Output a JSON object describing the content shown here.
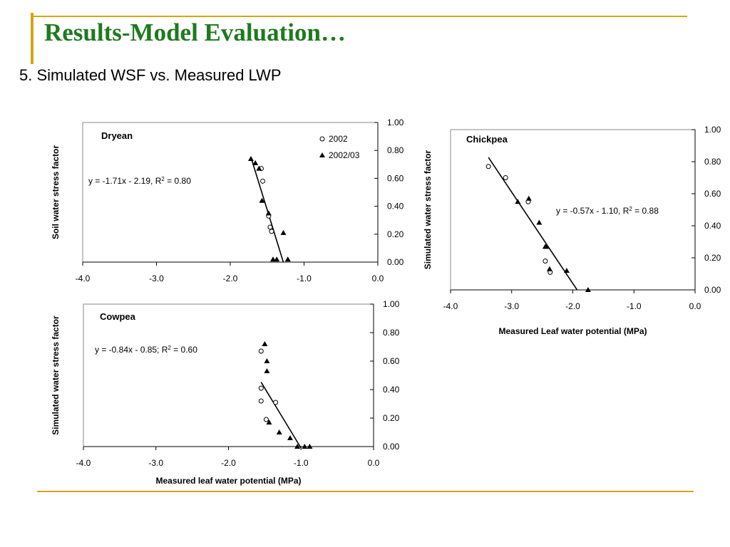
{
  "slide": {
    "title": "Results-Model Evaluation…",
    "subtitle": "5. Simulated WSF vs. Measured LWP"
  },
  "colors": {
    "accent": "#d4a514",
    "title": "#1e7a1e"
  },
  "legend": {
    "open_label": "2002",
    "filled_label": "2002/03"
  },
  "chart_data": [
    {
      "type": "scatter",
      "panel": "Dryean",
      "xlim": [
        -4.0,
        0.0
      ],
      "ylim": [
        0.0,
        1.0
      ],
      "xticks": [
        "-4.0",
        "-3.0",
        "-2.0",
        "-1.0",
        "0.0"
      ],
      "yticks": [
        "0.00",
        "0.20",
        "0.40",
        "0.60",
        "0.80",
        "1.00"
      ],
      "xlabel": "",
      "ylabel": "Soil water stress factor",
      "equation": "y = -1.71x - 2.19, R",
      "eq_sup": "2",
      "eq_tail": " = 0.80",
      "series": [
        {
          "name": "2002",
          "marker": "circle",
          "points": [
            [
              -1.58,
              0.67
            ],
            [
              -1.56,
              0.58
            ],
            [
              -1.48,
              0.33
            ],
            [
              -1.46,
              0.25
            ],
            [
              -1.44,
              0.22
            ]
          ]
        },
        {
          "name": "2002/03",
          "marker": "triangle",
          "points": [
            [
              -1.72,
              0.74
            ],
            [
              -1.66,
              0.71
            ],
            [
              -1.61,
              0.67
            ],
            [
              -1.57,
              0.44
            ],
            [
              -1.48,
              0.35
            ],
            [
              -1.42,
              0.02
            ],
            [
              -1.37,
              0.02
            ],
            [
              -1.28,
              0.21
            ],
            [
              -1.22,
              0.02
            ]
          ]
        }
      ],
      "fit": {
        "x": [
          -1.72,
          -1.28
        ]
      }
    },
    {
      "type": "scatter",
      "panel": "Cowpea",
      "xlim": [
        -4.0,
        0.0
      ],
      "ylim": [
        0.0,
        1.0
      ],
      "xticks": [
        "-4.0",
        "-3.0",
        "-2.0",
        "-1.0",
        "0.0"
      ],
      "yticks": [
        "0.00",
        "0.20",
        "0.40",
        "0.60",
        "0.80",
        "1.00"
      ],
      "xlabel": "Measured leaf water potential (MPa)",
      "ylabel": "Simulated water stress factor",
      "equation": "y = -0.84x - 0.85; R",
      "eq_sup": "2",
      "eq_tail": " = 0.60",
      "series": [
        {
          "name": "2002",
          "marker": "circle",
          "points": [
            [
              -1.55,
              0.67
            ],
            [
              -1.55,
              0.41
            ],
            [
              -1.55,
              0.32
            ],
            [
              -1.48,
              0.19
            ],
            [
              -1.35,
              0.31
            ]
          ]
        },
        {
          "name": "2002/03",
          "marker": "triangle",
          "points": [
            [
              -1.5,
              0.72
            ],
            [
              -1.47,
              0.6
            ],
            [
              -1.47,
              0.53
            ],
            [
              -1.44,
              0.17
            ],
            [
              -1.3,
              0.1
            ],
            [
              -1.15,
              0.06
            ],
            [
              -1.05,
              0.0
            ],
            [
              -0.95,
              0.0
            ],
            [
              -0.88,
              0.0
            ]
          ]
        }
      ],
      "fit": {
        "x": [
          -1.55,
          -1.0
        ]
      }
    },
    {
      "type": "scatter",
      "panel": "Chickpea",
      "xlim": [
        -4.0,
        0.0
      ],
      "ylim": [
        0.0,
        1.0
      ],
      "xticks": [
        "-4.0",
        "-3.0",
        "-2.0",
        "-1.0",
        "0.0"
      ],
      "yticks": [
        "0.00",
        "0.20",
        "0.40",
        "0.60",
        "0.80",
        "1.00"
      ],
      "xlabel": "Measured Leaf water potential (MPa)",
      "ylabel": "Simulated water stress factor",
      "equation": "y = -0.57x - 1.10, R",
      "eq_sup": "2",
      "eq_tail": " = 0.88",
      "series": [
        {
          "name": "2002",
          "marker": "circle",
          "points": [
            [
              -3.38,
              0.77
            ],
            [
              -3.1,
              0.7
            ],
            [
              -2.73,
              0.55
            ],
            [
              -2.45,
              0.18
            ],
            [
              -2.37,
              0.11
            ]
          ]
        },
        {
          "name": "2002/03",
          "marker": "triangle",
          "points": [
            [
              -2.9,
              0.55
            ],
            [
              -2.72,
              0.57
            ],
            [
              -2.55,
              0.42
            ],
            [
              -2.45,
              0.27
            ],
            [
              -2.43,
              0.27
            ],
            [
              -2.38,
              0.13
            ],
            [
              -2.1,
              0.12
            ],
            [
              -1.75,
              0.0
            ]
          ]
        }
      ],
      "fit": {
        "x": [
          -3.38,
          -1.93
        ]
      }
    }
  ]
}
